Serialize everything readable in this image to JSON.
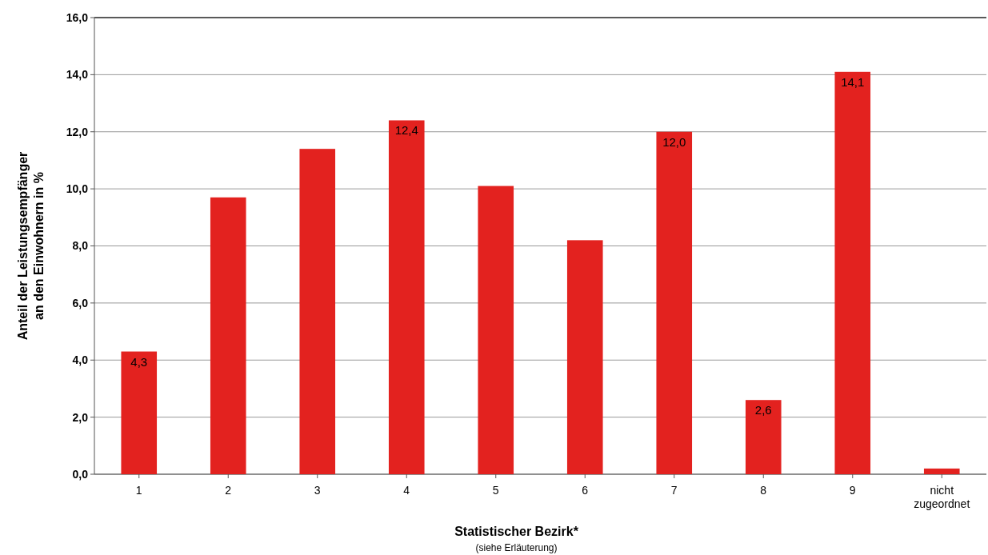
{
  "chart_data": {
    "type": "bar",
    "xlabel": "Statistischer Bezirk*",
    "ylabel": "Anteil der Leistungsempfänger\nan den Einwohnern in %",
    "annotations": [
      "(siehe Erläuterung)"
    ],
    "categories": [
      "1",
      "2",
      "3",
      "4",
      "5",
      "6",
      "7",
      "8",
      "9",
      "nicht\nzugeordnet"
    ],
    "values": [
      4.3,
      9.7,
      11.4,
      12.4,
      10.1,
      8.2,
      12.0,
      2.6,
      14.1,
      0.2
    ],
    "value_labels": [
      "4,3",
      null,
      null,
      "12,4",
      null,
      null,
      "12,0",
      "2,6",
      "14,1",
      null
    ],
    "color": "#e3221f",
    "ylim": [
      0,
      16
    ],
    "yticks": [
      {
        "value": 0,
        "label": "0,0"
      },
      {
        "value": 2,
        "label": "2,0"
      },
      {
        "value": 4,
        "label": "4,0"
      },
      {
        "value": 6,
        "label": "6,0"
      },
      {
        "value": 8,
        "label": "8,0"
      },
      {
        "value": 10,
        "label": "10,0"
      },
      {
        "value": 12,
        "label": "12,0"
      },
      {
        "value": 14,
        "label": "14,0"
      },
      {
        "value": 16,
        "label": "16,0"
      }
    ],
    "grid": "y"
  }
}
